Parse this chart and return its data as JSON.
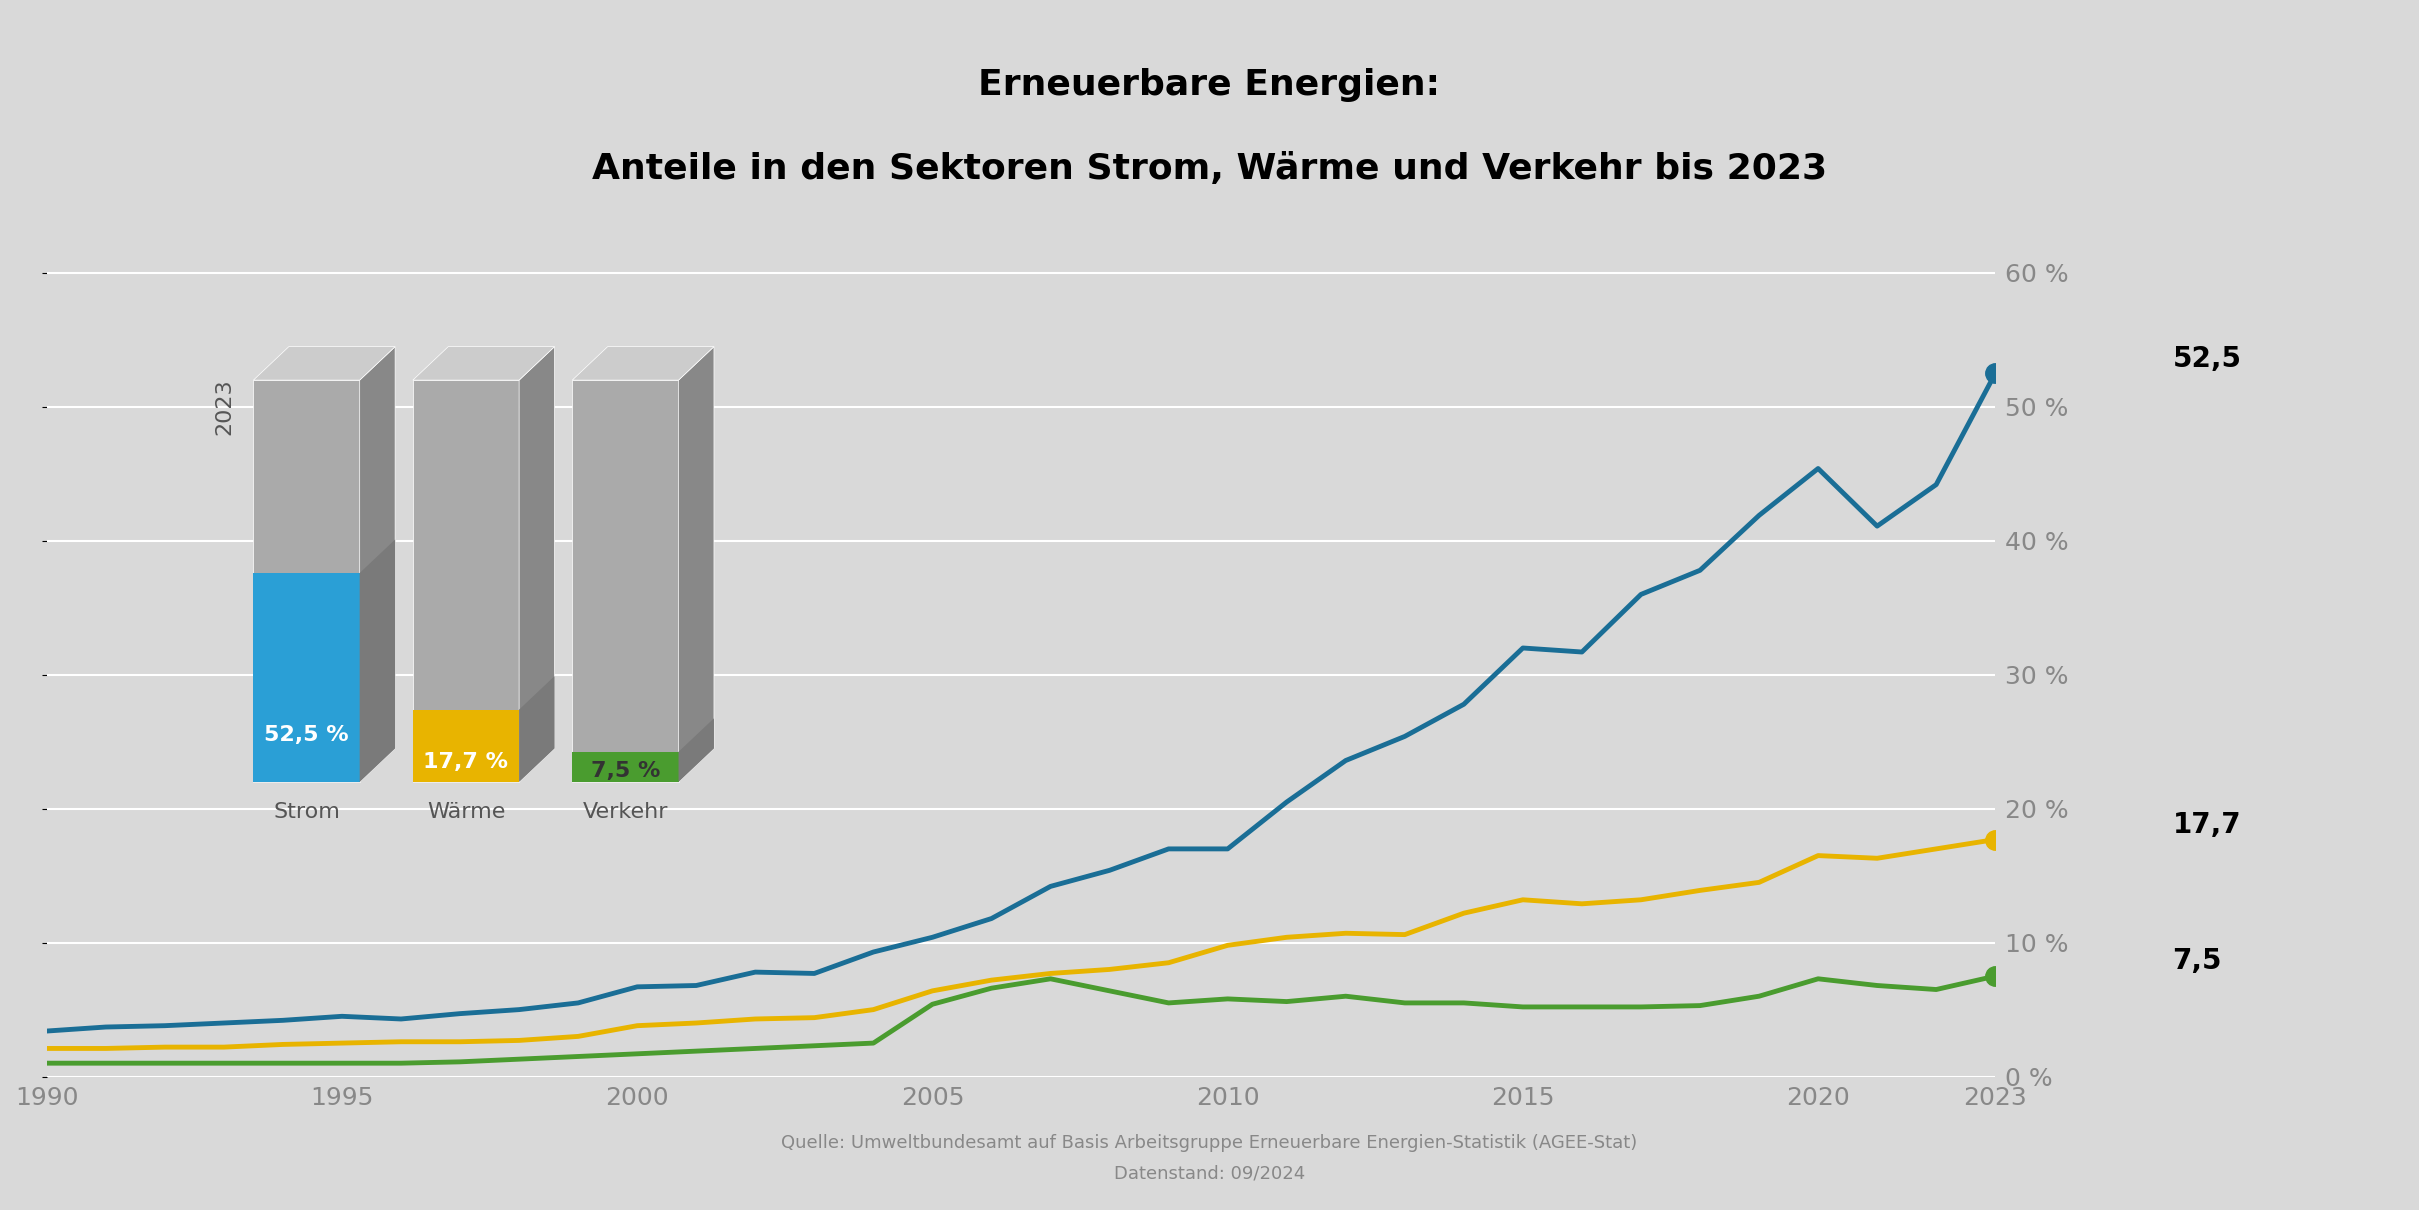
{
  "title_line1": "Erneuerbare Energien:",
  "title_line2": "Anteile in den Sektoren Strom, Wärme und Verkehr bis 2023",
  "background_color": "#d9d9d9",
  "source_text": "Quelle: Umweltbundesamt auf Basis Arbeitsgruppe Erneuerbare Energien-Statistik (AGEE-Stat)",
  "date_text": "Datenstand: 09/2024",
  "years": [
    1990,
    1991,
    1992,
    1993,
    1994,
    1995,
    1996,
    1997,
    1998,
    1999,
    2000,
    2001,
    2002,
    2003,
    2004,
    2005,
    2006,
    2007,
    2008,
    2009,
    2010,
    2011,
    2012,
    2013,
    2014,
    2015,
    2016,
    2017,
    2018,
    2019,
    2020,
    2021,
    2022,
    2023
  ],
  "strom": [
    3.4,
    3.7,
    3.8,
    4.0,
    4.2,
    4.5,
    4.3,
    4.7,
    5.0,
    5.5,
    6.7,
    6.8,
    7.8,
    7.7,
    9.3,
    10.4,
    11.8,
    14.2,
    15.4,
    17.0,
    17.0,
    20.5,
    23.6,
    25.4,
    27.8,
    32.0,
    31.7,
    36.0,
    37.8,
    41.9,
    45.4,
    41.1,
    44.2,
    52.5
  ],
  "waerme": [
    2.1,
    2.1,
    2.2,
    2.2,
    2.4,
    2.5,
    2.6,
    2.6,
    2.7,
    3.0,
    3.8,
    4.0,
    4.3,
    4.4,
    5.0,
    6.4,
    7.2,
    7.7,
    8.0,
    8.5,
    9.8,
    10.4,
    10.7,
    10.6,
    12.2,
    13.2,
    12.9,
    13.2,
    13.9,
    14.5,
    16.5,
    16.3,
    17.0,
    17.7
  ],
  "verkehr": [
    1.0,
    1.0,
    1.0,
    1.0,
    1.0,
    1.0,
    1.0,
    1.1,
    1.3,
    1.5,
    1.7,
    1.9,
    2.1,
    2.3,
    2.5,
    5.4,
    6.6,
    7.3,
    6.4,
    5.5,
    5.8,
    5.6,
    6.0,
    5.5,
    5.5,
    5.2,
    5.2,
    5.2,
    5.3,
    6.0,
    7.3,
    6.8,
    6.5,
    7.5
  ],
  "strom_color": "#1a6e96",
  "waerme_color": "#e8b400",
  "verkehr_color": "#4a9c2f",
  "ylim_min": 0,
  "ylim_max": 63,
  "yticks": [
    0,
    10,
    20,
    30,
    40,
    50,
    60
  ],
  "xticks": [
    1990,
    1995,
    2000,
    2005,
    2010,
    2015,
    2020,
    2023
  ],
  "final_values": {
    "strom": 52.5,
    "waerme": 17.7,
    "verkehr": 7.5
  },
  "bar_labels": [
    {
      "label": "52,5 %",
      "sector": "Strom"
    },
    {
      "label": "17,7 %",
      "sector": "Wärme"
    },
    {
      "label": "7,5 %",
      "sector": "Verkehr"
    }
  ]
}
